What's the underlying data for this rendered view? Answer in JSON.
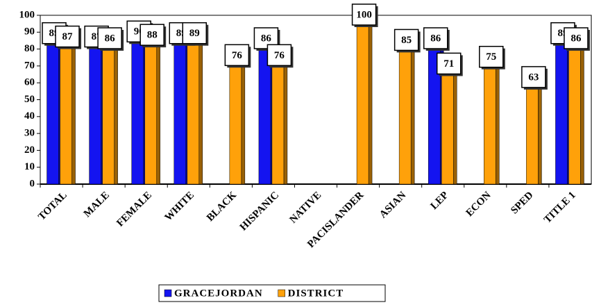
{
  "chart_data": {
    "type": "bar",
    "categories": [
      "TOTAL",
      "MALE",
      "FEMALE",
      "WHITE",
      "BLACK",
      "HISPANIC",
      "NATIVE",
      "PACISLANDER",
      "ASIAN",
      "LEP",
      "ECON",
      "SPED",
      "TITLE 1"
    ],
    "series": [
      {
        "name": "GRACEJORDAN",
        "color": "#1414f0",
        "values": [
          89,
          87,
          90,
          89,
          null,
          86,
          null,
          null,
          null,
          86,
          null,
          null,
          89
        ]
      },
      {
        "name": "DISTRICT",
        "color": "#ffa10a",
        "values": [
          87,
          86,
          88,
          89,
          76,
          76,
          null,
          100,
          85,
          71,
          75,
          63,
          86
        ]
      }
    ],
    "ylim": [
      0,
      100
    ],
    "yticks": [
      0,
      10,
      20,
      30,
      40,
      50,
      60,
      70,
      80,
      90,
      100
    ],
    "grid": false,
    "legend": "bottom"
  }
}
